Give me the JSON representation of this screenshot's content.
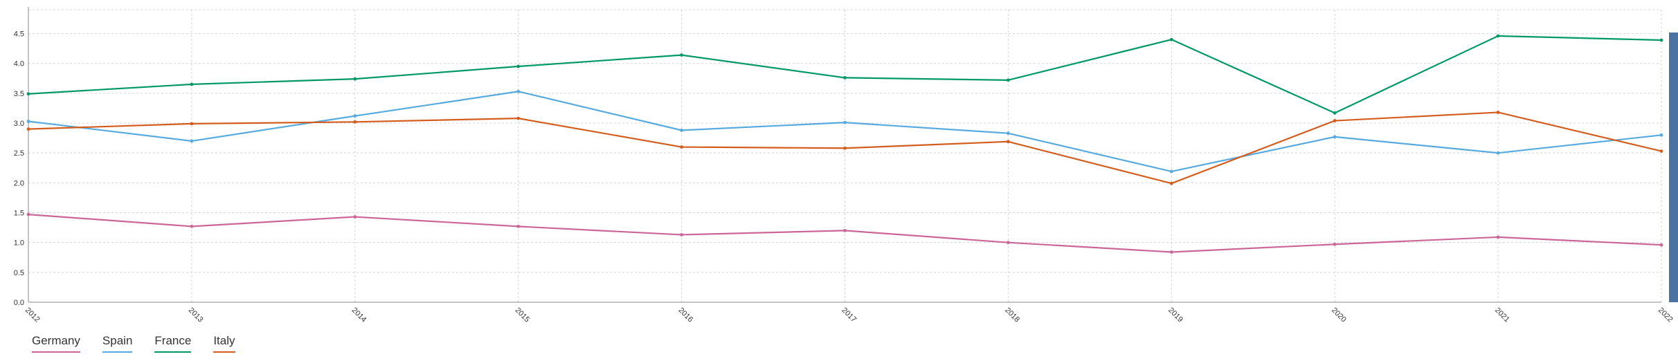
{
  "chart_data": {
    "type": "line",
    "title": "",
    "xlabel": "",
    "ylabel": "",
    "x": [
      "2012",
      "2013",
      "2014",
      "2015",
      "2016",
      "2017",
      "2018",
      "2019",
      "2020",
      "2021",
      "2022"
    ],
    "ylim": [
      0,
      4.9
    ],
    "yticks": [
      "0.0",
      "0.5",
      "1.0",
      "1.5",
      "2.0",
      "2.5",
      "3.0",
      "3.5",
      "4.0",
      "4.5"
    ],
    "grid": true,
    "legend_position": "bottom-left",
    "series": [
      {
        "name": "Germany",
        "color": "#cc6699",
        "values": [
          1.47,
          1.27,
          1.43,
          1.27,
          1.13,
          1.2,
          1.0,
          0.84,
          0.97,
          1.09,
          0.96
        ]
      },
      {
        "name": "Spain",
        "color": "#56aae0",
        "values": [
          3.03,
          2.7,
          3.12,
          3.53,
          2.88,
          3.01,
          2.83,
          2.19,
          2.77,
          2.5,
          2.8
        ]
      },
      {
        "name": "France",
        "color": "#009966",
        "values": [
          3.49,
          3.65,
          3.74,
          3.95,
          4.14,
          3.76,
          3.72,
          4.4,
          3.17,
          4.46,
          4.39
        ]
      },
      {
        "name": "Italy",
        "color": "#d45d1e",
        "values": [
          2.9,
          2.99,
          3.02,
          3.08,
          2.6,
          2.58,
          2.69,
          1.99,
          3.04,
          3.18,
          2.53
        ]
      }
    ]
  }
}
